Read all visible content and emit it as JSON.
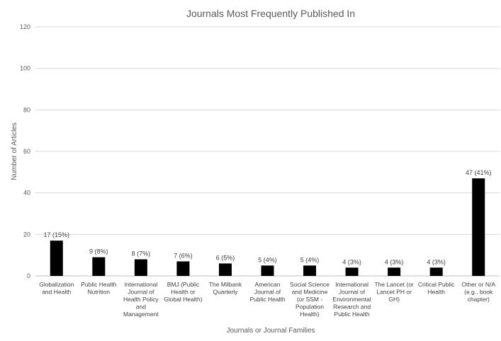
{
  "chart_data": {
    "type": "bar",
    "title": "Journals Most Frequently Published In",
    "xlabel": "Journals or Journal Families",
    "ylabel": "Number of Articles",
    "ylim": [
      0,
      120
    ],
    "yticks": [
      0,
      20,
      40,
      60,
      80,
      100,
      120
    ],
    "grid": true,
    "bar_color": "#000000",
    "categories": [
      [
        "Globalization",
        "and Health"
      ],
      [
        "Public Health",
        "Nutrition"
      ],
      [
        "International",
        "Journal of",
        "Health Policy",
        "and",
        "Management"
      ],
      [
        "BMJ (Public",
        "Health or",
        "Global Health)"
      ],
      [
        "The Milbank",
        "Quarterly"
      ],
      [
        "American",
        "Journal of",
        "Public Health"
      ],
      [
        "Social Science",
        "and Medicine",
        "(or SSM -",
        "Population",
        "Health)"
      ],
      [
        "International",
        "Journal of",
        "Environmental",
        "Research and",
        "Public Health"
      ],
      [
        "The Lancet (or",
        "Lancet PH or",
        "GH)"
      ],
      [
        "Critical Public",
        "Health"
      ],
      [
        "Other or N/A",
        "(e.g., book",
        "chapter)"
      ]
    ],
    "values": [
      17,
      9,
      8,
      7,
      6,
      5,
      5,
      4,
      4,
      4,
      47
    ],
    "data_labels": [
      "17 (15%)",
      "9 (8%)",
      "8 (7%)",
      "7 (6%)",
      "6 (5%)",
      "5 (4%)",
      "5 (4%)",
      "4 (3%)",
      "4 (3%)",
      "4 (3%)",
      "47 (41%)"
    ]
  }
}
